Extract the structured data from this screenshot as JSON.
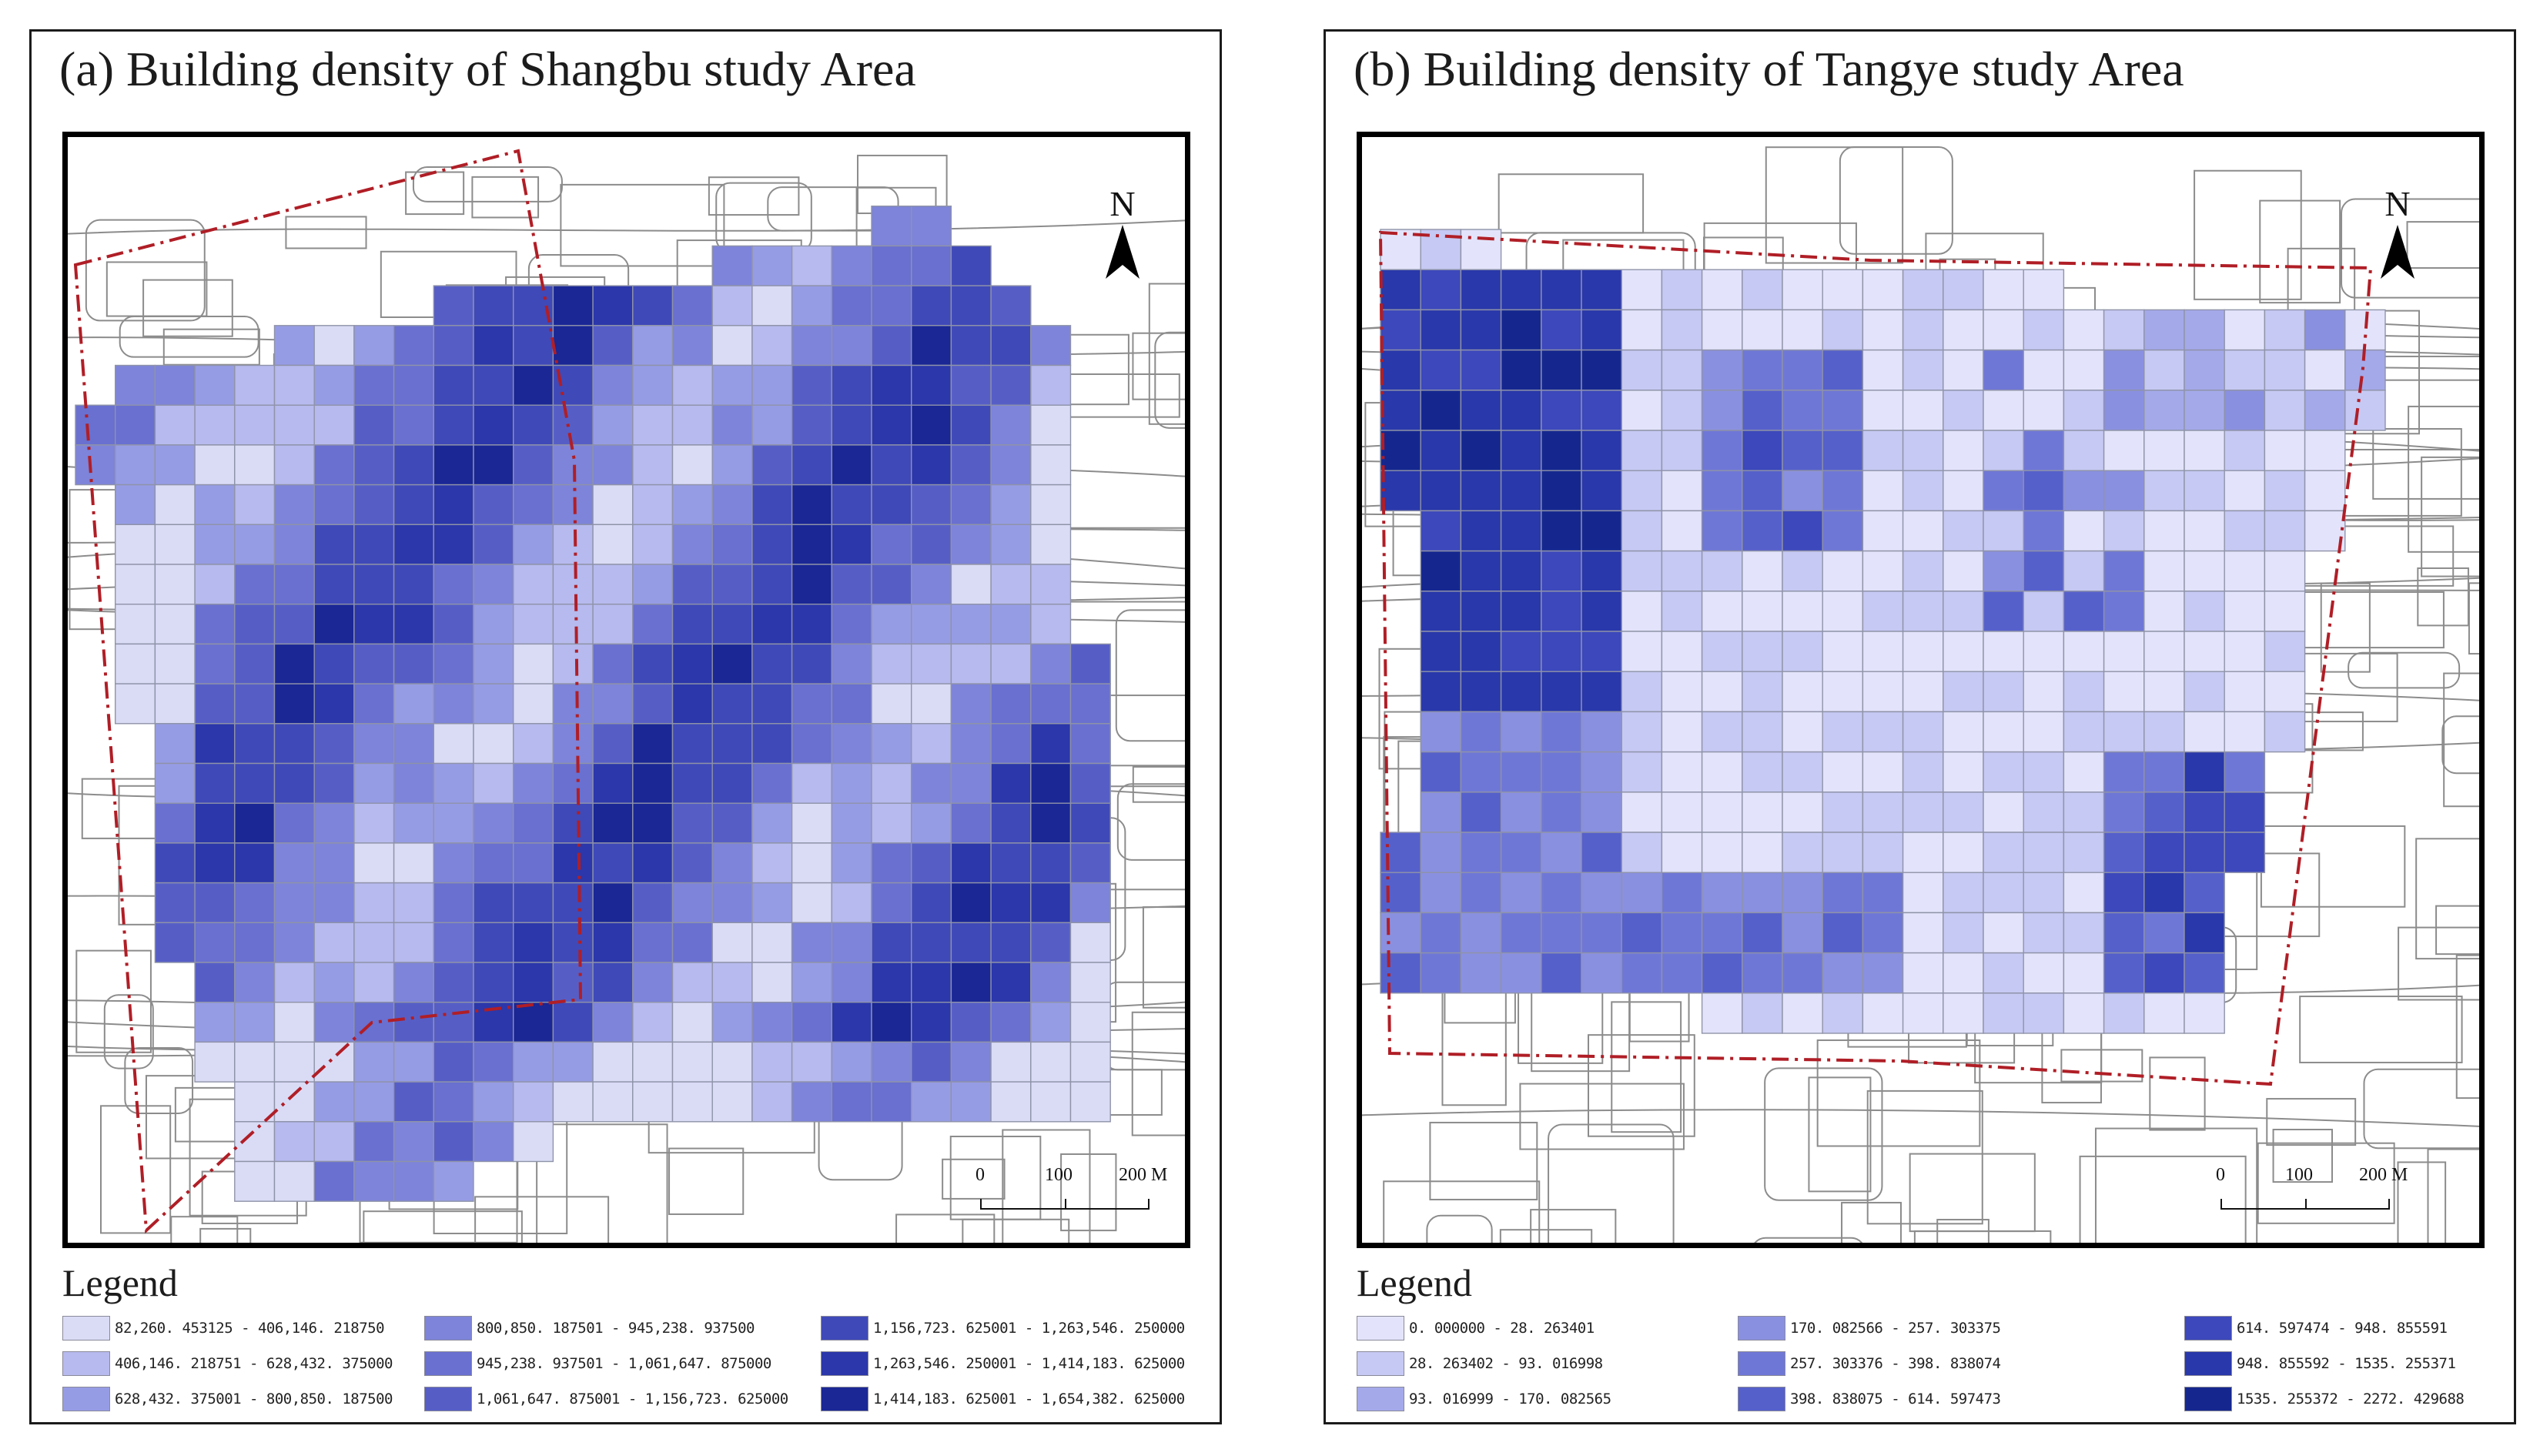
{
  "panels": [
    {
      "id": "a",
      "title": "(a) Building density of Shangbu study Area",
      "north_label": "N",
      "scale": {
        "ticks": [
          "0",
          "100",
          "200 M"
        ]
      },
      "legend_title": "Legend",
      "legend": [
        {
          "label": "82,260. 453125 - 406,146. 218750",
          "color": "#dadcf6"
        },
        {
          "label": "406,146. 218751 - 628,432. 375000",
          "color": "#b6baee"
        },
        {
          "label": "628,432. 375001 - 800,850. 187500",
          "color": "#969ce4"
        },
        {
          "label": "800,850. 187501 - 945,238. 937500",
          "color": "#7d84d9"
        },
        {
          "label": "945,238. 937501 - 1,061,647. 875000",
          "color": "#6970d0"
        },
        {
          "label": "1,061,647. 875001 - 1,156,723. 625000",
          "color": "#565ec6"
        },
        {
          "label": "1,156,723. 625001 - 1,263,546. 250000",
          "color": "#3f49b8"
        },
        {
          "label": "1,263,546. 250001 - 1,414,183. 625000",
          "color": "#2b37aa"
        },
        {
          "label": "1,414,183. 625001 - 1,654,382. 625000",
          "color": "#1a2795"
        }
      ]
    },
    {
      "id": "b",
      "title": "(b) Building density of Tangye study Area",
      "north_label": "N",
      "scale": {
        "ticks": [
          "0",
          "100",
          "200 M"
        ]
      },
      "legend_title": "Legend",
      "legend": [
        {
          "label": "0. 000000 - 28. 263401",
          "color": "#e3e4fb"
        },
        {
          "label": "28. 263402 - 93. 016998",
          "color": "#c6c9f3"
        },
        {
          "label": "93. 016999 - 170. 082565",
          "color": "#a4a9ea"
        },
        {
          "label": "170. 082566 - 257. 303375",
          "color": "#8a90e0"
        },
        {
          "label": "257. 303376 - 398. 838074",
          "color": "#6f77d6"
        },
        {
          "label": "398. 838075 - 614. 597473",
          "color": "#5660cb"
        },
        {
          "label": "614. 597474 - 948. 855591",
          "color": "#3c48bb"
        },
        {
          "label": "948. 855592 - 1535. 255371",
          "color": "#2938aa"
        },
        {
          "label": "1535. 255372 - 2272. 429688",
          "color": "#15278f"
        }
      ]
    }
  ]
}
